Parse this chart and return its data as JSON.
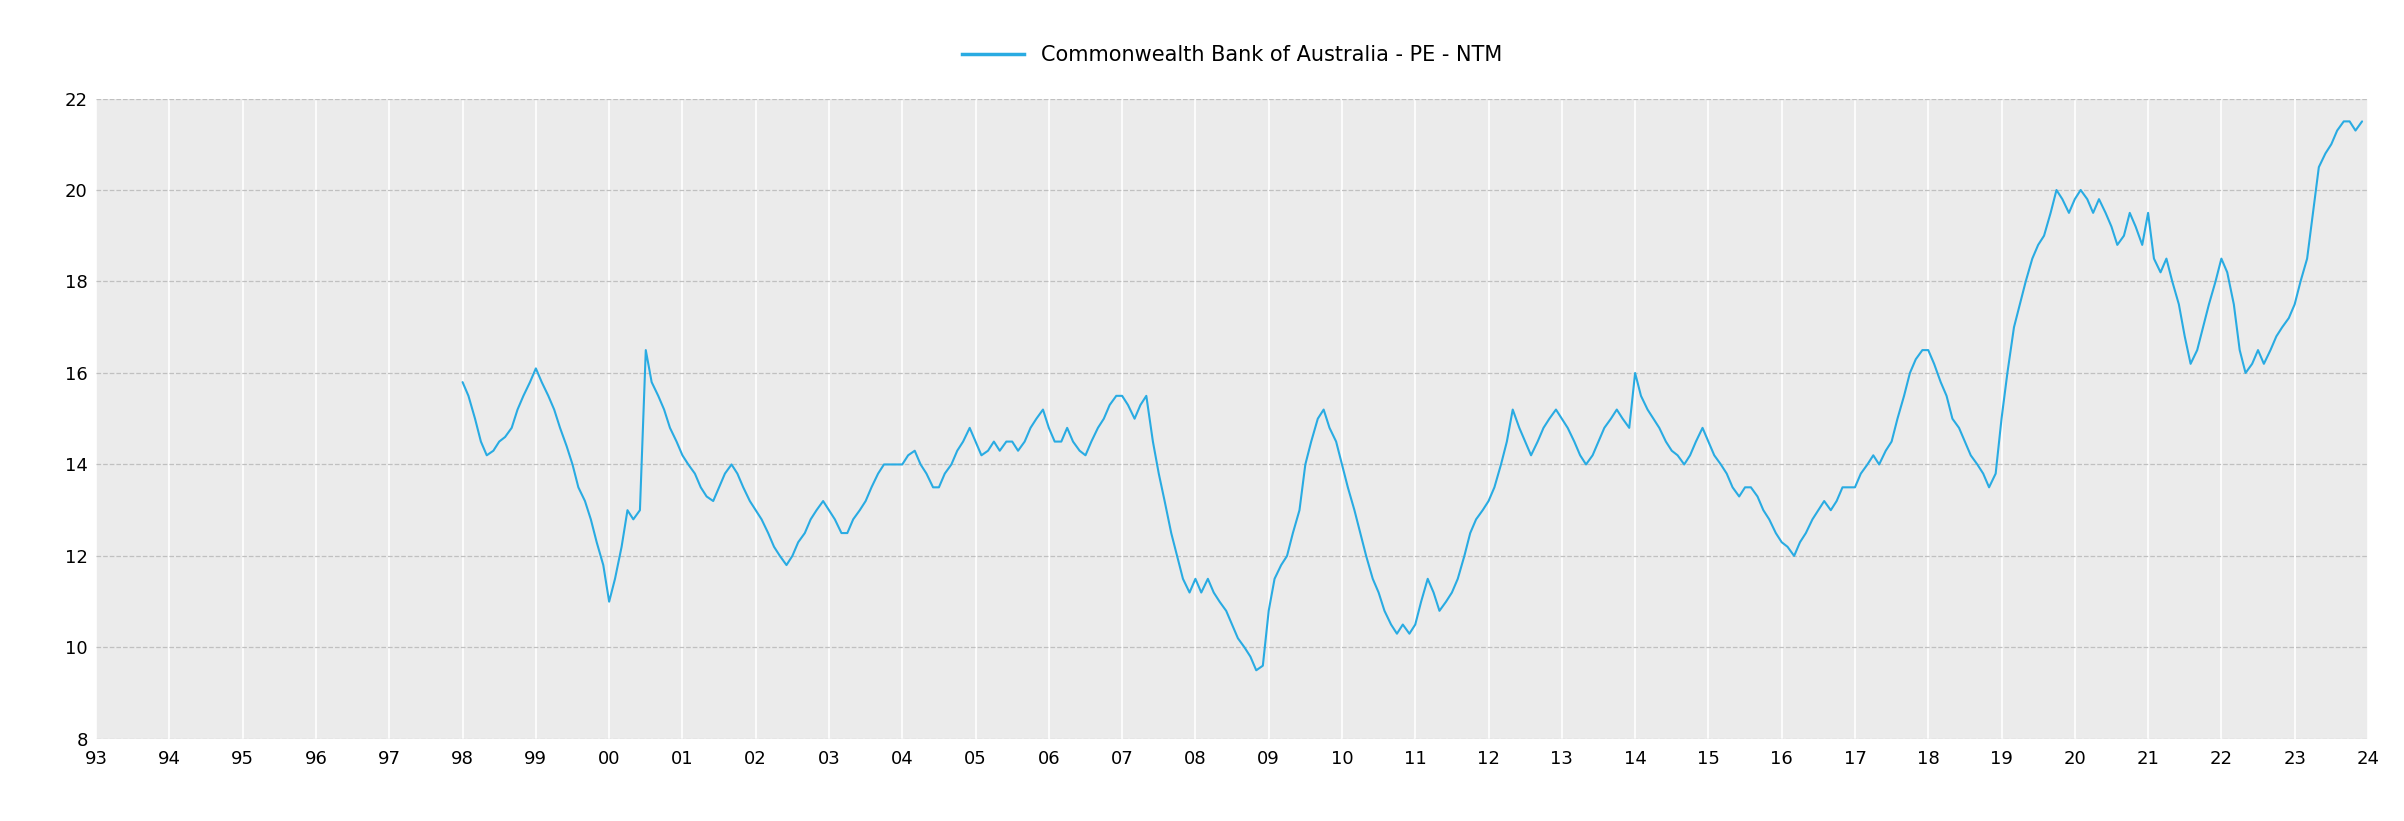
{
  "title": "Commonwealth Bank of Australia - PE - NTM",
  "line_color": "#29ABE2",
  "fig_bg_color": "#FFFFFF",
  "plot_bg_color": "#EBEBEB",
  "ylim": [
    8,
    22
  ],
  "yticks": [
    8,
    10,
    12,
    14,
    16,
    18,
    20,
    22
  ],
  "xlim_left": 1993,
  "xlim_right": 2024,
  "xtick_labels": [
    "93",
    "94",
    "95",
    "96",
    "97",
    "98",
    "99",
    "00",
    "01",
    "02",
    "03",
    "04",
    "05",
    "06",
    "07",
    "08",
    "09",
    "10",
    "11",
    "12",
    "13",
    "14",
    "15",
    "16",
    "17",
    "18",
    "19",
    "20",
    "21",
    "22",
    "23",
    "24"
  ],
  "data": [
    [
      1998.0,
      15.8
    ],
    [
      1998.08,
      15.5
    ],
    [
      1998.17,
      15.0
    ],
    [
      1998.25,
      14.5
    ],
    [
      1998.33,
      14.2
    ],
    [
      1998.42,
      14.3
    ],
    [
      1998.5,
      14.5
    ],
    [
      1998.58,
      14.6
    ],
    [
      1998.67,
      14.8
    ],
    [
      1998.75,
      15.2
    ],
    [
      1998.83,
      15.5
    ],
    [
      1998.92,
      15.8
    ],
    [
      1999.0,
      16.1
    ],
    [
      1999.08,
      15.8
    ],
    [
      1999.17,
      15.5
    ],
    [
      1999.25,
      15.2
    ],
    [
      1999.33,
      14.8
    ],
    [
      1999.42,
      14.4
    ],
    [
      1999.5,
      14.0
    ],
    [
      1999.58,
      13.5
    ],
    [
      1999.67,
      13.2
    ],
    [
      1999.75,
      12.8
    ],
    [
      1999.83,
      12.3
    ],
    [
      1999.92,
      11.8
    ],
    [
      2000.0,
      11.0
    ],
    [
      2000.08,
      11.5
    ],
    [
      2000.17,
      12.2
    ],
    [
      2000.25,
      13.0
    ],
    [
      2000.33,
      12.8
    ],
    [
      2000.42,
      13.0
    ],
    [
      2000.5,
      16.5
    ],
    [
      2000.58,
      15.8
    ],
    [
      2000.67,
      15.5
    ],
    [
      2000.75,
      15.2
    ],
    [
      2000.83,
      14.8
    ],
    [
      2000.92,
      14.5
    ],
    [
      2001.0,
      14.2
    ],
    [
      2001.08,
      14.0
    ],
    [
      2001.17,
      13.8
    ],
    [
      2001.25,
      13.5
    ],
    [
      2001.33,
      13.3
    ],
    [
      2001.42,
      13.2
    ],
    [
      2001.5,
      13.5
    ],
    [
      2001.58,
      13.8
    ],
    [
      2001.67,
      14.0
    ],
    [
      2001.75,
      13.8
    ],
    [
      2001.83,
      13.5
    ],
    [
      2001.92,
      13.2
    ],
    [
      2002.0,
      13.0
    ],
    [
      2002.08,
      12.8
    ],
    [
      2002.17,
      12.5
    ],
    [
      2002.25,
      12.2
    ],
    [
      2002.33,
      12.0
    ],
    [
      2002.42,
      11.8
    ],
    [
      2002.5,
      12.0
    ],
    [
      2002.58,
      12.3
    ],
    [
      2002.67,
      12.5
    ],
    [
      2002.75,
      12.8
    ],
    [
      2002.83,
      13.0
    ],
    [
      2002.92,
      13.2
    ],
    [
      2003.0,
      13.0
    ],
    [
      2003.08,
      12.8
    ],
    [
      2003.17,
      12.5
    ],
    [
      2003.25,
      12.5
    ],
    [
      2003.33,
      12.8
    ],
    [
      2003.42,
      13.0
    ],
    [
      2003.5,
      13.2
    ],
    [
      2003.58,
      13.5
    ],
    [
      2003.67,
      13.8
    ],
    [
      2003.75,
      14.0
    ],
    [
      2003.83,
      14.0
    ],
    [
      2003.92,
      14.0
    ],
    [
      2004.0,
      14.0
    ],
    [
      2004.08,
      14.2
    ],
    [
      2004.17,
      14.3
    ],
    [
      2004.25,
      14.0
    ],
    [
      2004.33,
      13.8
    ],
    [
      2004.42,
      13.5
    ],
    [
      2004.5,
      13.5
    ],
    [
      2004.58,
      13.8
    ],
    [
      2004.67,
      14.0
    ],
    [
      2004.75,
      14.3
    ],
    [
      2004.83,
      14.5
    ],
    [
      2004.92,
      14.8
    ],
    [
      2005.0,
      14.5
    ],
    [
      2005.08,
      14.2
    ],
    [
      2005.17,
      14.3
    ],
    [
      2005.25,
      14.5
    ],
    [
      2005.33,
      14.3
    ],
    [
      2005.42,
      14.5
    ],
    [
      2005.5,
      14.5
    ],
    [
      2005.58,
      14.3
    ],
    [
      2005.67,
      14.5
    ],
    [
      2005.75,
      14.8
    ],
    [
      2005.83,
      15.0
    ],
    [
      2005.92,
      15.2
    ],
    [
      2006.0,
      14.8
    ],
    [
      2006.08,
      14.5
    ],
    [
      2006.17,
      14.5
    ],
    [
      2006.25,
      14.8
    ],
    [
      2006.33,
      14.5
    ],
    [
      2006.42,
      14.3
    ],
    [
      2006.5,
      14.2
    ],
    [
      2006.58,
      14.5
    ],
    [
      2006.67,
      14.8
    ],
    [
      2006.75,
      15.0
    ],
    [
      2006.83,
      15.3
    ],
    [
      2006.92,
      15.5
    ],
    [
      2007.0,
      15.5
    ],
    [
      2007.08,
      15.3
    ],
    [
      2007.17,
      15.0
    ],
    [
      2007.25,
      15.3
    ],
    [
      2007.33,
      15.5
    ],
    [
      2007.42,
      14.5
    ],
    [
      2007.5,
      13.8
    ],
    [
      2007.58,
      13.2
    ],
    [
      2007.67,
      12.5
    ],
    [
      2007.75,
      12.0
    ],
    [
      2007.83,
      11.5
    ],
    [
      2007.92,
      11.2
    ],
    [
      2008.0,
      11.5
    ],
    [
      2008.08,
      11.2
    ],
    [
      2008.17,
      11.5
    ],
    [
      2008.25,
      11.2
    ],
    [
      2008.33,
      11.0
    ],
    [
      2008.42,
      10.8
    ],
    [
      2008.5,
      10.5
    ],
    [
      2008.58,
      10.2
    ],
    [
      2008.67,
      10.0
    ],
    [
      2008.75,
      9.8
    ],
    [
      2008.83,
      9.5
    ],
    [
      2008.92,
      9.6
    ],
    [
      2009.0,
      10.8
    ],
    [
      2009.08,
      11.5
    ],
    [
      2009.17,
      11.8
    ],
    [
      2009.25,
      12.0
    ],
    [
      2009.33,
      12.5
    ],
    [
      2009.42,
      13.0
    ],
    [
      2009.5,
      14.0
    ],
    [
      2009.58,
      14.5
    ],
    [
      2009.67,
      15.0
    ],
    [
      2009.75,
      15.2
    ],
    [
      2009.83,
      14.8
    ],
    [
      2009.92,
      14.5
    ],
    [
      2010.0,
      14.0
    ],
    [
      2010.08,
      13.5
    ],
    [
      2010.17,
      13.0
    ],
    [
      2010.25,
      12.5
    ],
    [
      2010.33,
      12.0
    ],
    [
      2010.42,
      11.5
    ],
    [
      2010.5,
      11.2
    ],
    [
      2010.58,
      10.8
    ],
    [
      2010.67,
      10.5
    ],
    [
      2010.75,
      10.3
    ],
    [
      2010.83,
      10.5
    ],
    [
      2010.92,
      10.3
    ],
    [
      2011.0,
      10.5
    ],
    [
      2011.08,
      11.0
    ],
    [
      2011.17,
      11.5
    ],
    [
      2011.25,
      11.2
    ],
    [
      2011.33,
      10.8
    ],
    [
      2011.42,
      11.0
    ],
    [
      2011.5,
      11.2
    ],
    [
      2011.58,
      11.5
    ],
    [
      2011.67,
      12.0
    ],
    [
      2011.75,
      12.5
    ],
    [
      2011.83,
      12.8
    ],
    [
      2011.92,
      13.0
    ],
    [
      2012.0,
      13.2
    ],
    [
      2012.08,
      13.5
    ],
    [
      2012.17,
      14.0
    ],
    [
      2012.25,
      14.5
    ],
    [
      2012.33,
      15.2
    ],
    [
      2012.42,
      14.8
    ],
    [
      2012.5,
      14.5
    ],
    [
      2012.58,
      14.2
    ],
    [
      2012.67,
      14.5
    ],
    [
      2012.75,
      14.8
    ],
    [
      2012.83,
      15.0
    ],
    [
      2012.92,
      15.2
    ],
    [
      2013.0,
      15.0
    ],
    [
      2013.08,
      14.8
    ],
    [
      2013.17,
      14.5
    ],
    [
      2013.25,
      14.2
    ],
    [
      2013.33,
      14.0
    ],
    [
      2013.42,
      14.2
    ],
    [
      2013.5,
      14.5
    ],
    [
      2013.58,
      14.8
    ],
    [
      2013.67,
      15.0
    ],
    [
      2013.75,
      15.2
    ],
    [
      2013.83,
      15.0
    ],
    [
      2013.92,
      14.8
    ],
    [
      2014.0,
      16.0
    ],
    [
      2014.08,
      15.5
    ],
    [
      2014.17,
      15.2
    ],
    [
      2014.25,
      15.0
    ],
    [
      2014.33,
      14.8
    ],
    [
      2014.42,
      14.5
    ],
    [
      2014.5,
      14.3
    ],
    [
      2014.58,
      14.2
    ],
    [
      2014.67,
      14.0
    ],
    [
      2014.75,
      14.2
    ],
    [
      2014.83,
      14.5
    ],
    [
      2014.92,
      14.8
    ],
    [
      2015.0,
      14.5
    ],
    [
      2015.08,
      14.2
    ],
    [
      2015.17,
      14.0
    ],
    [
      2015.25,
      13.8
    ],
    [
      2015.33,
      13.5
    ],
    [
      2015.42,
      13.3
    ],
    [
      2015.5,
      13.5
    ],
    [
      2015.58,
      13.5
    ],
    [
      2015.67,
      13.3
    ],
    [
      2015.75,
      13.0
    ],
    [
      2015.83,
      12.8
    ],
    [
      2015.92,
      12.5
    ],
    [
      2016.0,
      12.3
    ],
    [
      2016.08,
      12.2
    ],
    [
      2016.17,
      12.0
    ],
    [
      2016.25,
      12.3
    ],
    [
      2016.33,
      12.5
    ],
    [
      2016.42,
      12.8
    ],
    [
      2016.5,
      13.0
    ],
    [
      2016.58,
      13.2
    ],
    [
      2016.67,
      13.0
    ],
    [
      2016.75,
      13.2
    ],
    [
      2016.83,
      13.5
    ],
    [
      2016.92,
      13.5
    ],
    [
      2017.0,
      13.5
    ],
    [
      2017.08,
      13.8
    ],
    [
      2017.17,
      14.0
    ],
    [
      2017.25,
      14.2
    ],
    [
      2017.33,
      14.0
    ],
    [
      2017.42,
      14.3
    ],
    [
      2017.5,
      14.5
    ],
    [
      2017.58,
      15.0
    ],
    [
      2017.67,
      15.5
    ],
    [
      2017.75,
      16.0
    ],
    [
      2017.83,
      16.3
    ],
    [
      2017.92,
      16.5
    ],
    [
      2018.0,
      16.5
    ],
    [
      2018.08,
      16.2
    ],
    [
      2018.17,
      15.8
    ],
    [
      2018.25,
      15.5
    ],
    [
      2018.33,
      15.0
    ],
    [
      2018.42,
      14.8
    ],
    [
      2018.5,
      14.5
    ],
    [
      2018.58,
      14.2
    ],
    [
      2018.67,
      14.0
    ],
    [
      2018.75,
      13.8
    ],
    [
      2018.83,
      13.5
    ],
    [
      2018.92,
      13.8
    ],
    [
      2019.0,
      15.0
    ],
    [
      2019.08,
      16.0
    ],
    [
      2019.17,
      17.0
    ],
    [
      2019.25,
      17.5
    ],
    [
      2019.33,
      18.0
    ],
    [
      2019.42,
      18.5
    ],
    [
      2019.5,
      18.8
    ],
    [
      2019.58,
      19.0
    ],
    [
      2019.67,
      19.5
    ],
    [
      2019.75,
      20.0
    ],
    [
      2019.83,
      19.8
    ],
    [
      2019.92,
      19.5
    ],
    [
      2020.0,
      19.8
    ],
    [
      2020.08,
      20.0
    ],
    [
      2020.17,
      19.8
    ],
    [
      2020.25,
      19.5
    ],
    [
      2020.33,
      19.8
    ],
    [
      2020.42,
      19.5
    ],
    [
      2020.5,
      19.2
    ],
    [
      2020.58,
      18.8
    ],
    [
      2020.67,
      19.0
    ],
    [
      2020.75,
      19.5
    ],
    [
      2020.83,
      19.2
    ],
    [
      2020.92,
      18.8
    ],
    [
      2021.0,
      19.5
    ],
    [
      2021.08,
      18.5
    ],
    [
      2021.17,
      18.2
    ],
    [
      2021.25,
      18.5
    ],
    [
      2021.33,
      18.0
    ],
    [
      2021.42,
      17.5
    ],
    [
      2021.5,
      16.8
    ],
    [
      2021.58,
      16.2
    ],
    [
      2021.67,
      16.5
    ],
    [
      2021.75,
      17.0
    ],
    [
      2021.83,
      17.5
    ],
    [
      2021.92,
      18.0
    ],
    [
      2022.0,
      18.5
    ],
    [
      2022.08,
      18.2
    ],
    [
      2022.17,
      17.5
    ],
    [
      2022.25,
      16.5
    ],
    [
      2022.33,
      16.0
    ],
    [
      2022.42,
      16.2
    ],
    [
      2022.5,
      16.5
    ],
    [
      2022.58,
      16.2
    ],
    [
      2022.67,
      16.5
    ],
    [
      2022.75,
      16.8
    ],
    [
      2022.83,
      17.0
    ],
    [
      2022.92,
      17.2
    ],
    [
      2023.0,
      17.5
    ],
    [
      2023.08,
      18.0
    ],
    [
      2023.17,
      18.5
    ],
    [
      2023.25,
      19.5
    ],
    [
      2023.33,
      20.5
    ],
    [
      2023.42,
      20.8
    ],
    [
      2023.5,
      21.0
    ],
    [
      2023.58,
      21.3
    ],
    [
      2023.67,
      21.5
    ],
    [
      2023.75,
      21.5
    ],
    [
      2023.83,
      21.3
    ],
    [
      2023.92,
      21.5
    ]
  ]
}
